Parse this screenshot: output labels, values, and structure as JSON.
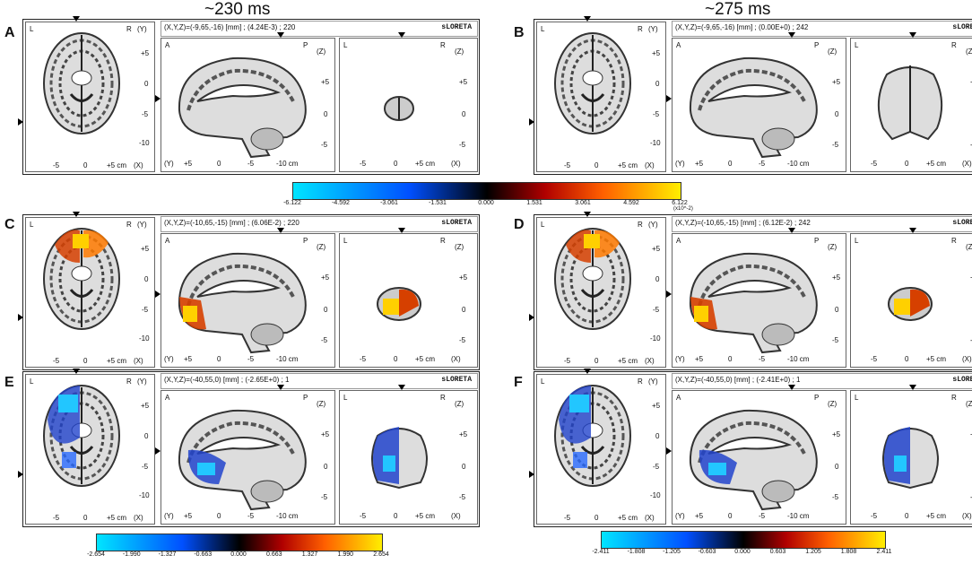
{
  "headers": {
    "left": "~230 ms",
    "right": "~275 ms"
  },
  "panels": [
    {
      "letter": "A",
      "info": "(X,Y,Z)=(-9,65,-16) [mm] ;  (4.24E-3) ;  220",
      "brand": "sLORETA",
      "act": "none"
    },
    {
      "letter": "B",
      "info": "(X,Y,Z)=(-9,65,-16) [mm] ;  (0.00E+0) ;  242",
      "brand": "sLORETA",
      "act": "none"
    },
    {
      "letter": "C",
      "info": "(X,Y,Z)=(-10,65,-15) [mm] ;  (6.06E-2) ;  220",
      "brand": "sLORETA",
      "act": "hot"
    },
    {
      "letter": "D",
      "info": "(X,Y,Z)=(-10,65,-15) [mm] ;  (6.12E-2) ;  242",
      "brand": "sLORETA",
      "act": "hot"
    },
    {
      "letter": "E",
      "info": "(X,Y,Z)=(-40,55,0) [mm] ;  (-2.65E+0) ;  1",
      "brand": "sLORETA",
      "act": "cold"
    },
    {
      "letter": "F",
      "info": "(X,Y,Z)=(-40,55,0) [mm] ;  (-2.41E+0) ;  1",
      "brand": "sLORETA",
      "act": "cold"
    }
  ],
  "axes": {
    "L": "L",
    "R": "R",
    "A": "A",
    "P": "P",
    "Y": "(Y)",
    "Z": "(Z)",
    "X": "(X)",
    "p5": "+5",
    "zero": "0",
    "m5": "-5",
    "m10": "-10",
    "m10cm": "-10 cm",
    "p5cm": "+5 cm"
  },
  "colorbars": [
    {
      "ticks": [
        "-6.122",
        "-4.592",
        "-3.061",
        "-1.531",
        "0.000",
        "1.531",
        "3.061",
        "4.592",
        "6.122"
      ],
      "unit": "(x10^-2)"
    },
    {
      "ticks": [
        "-2.654",
        "-1.990",
        "-1.327",
        "-0.663",
        "0.000",
        "0.663",
        "1.327",
        "1.990",
        "2.654"
      ]
    },
    {
      "ticks": [
        "-2.411",
        "-1.808",
        "-1.205",
        "-0.603",
        "0.000",
        "0.603",
        "1.205",
        "1.808",
        "2.411"
      ]
    }
  ],
  "colors": {
    "cold_end": "#00e5ff",
    "mid": "#000000",
    "hot_end": "#ffee00"
  }
}
